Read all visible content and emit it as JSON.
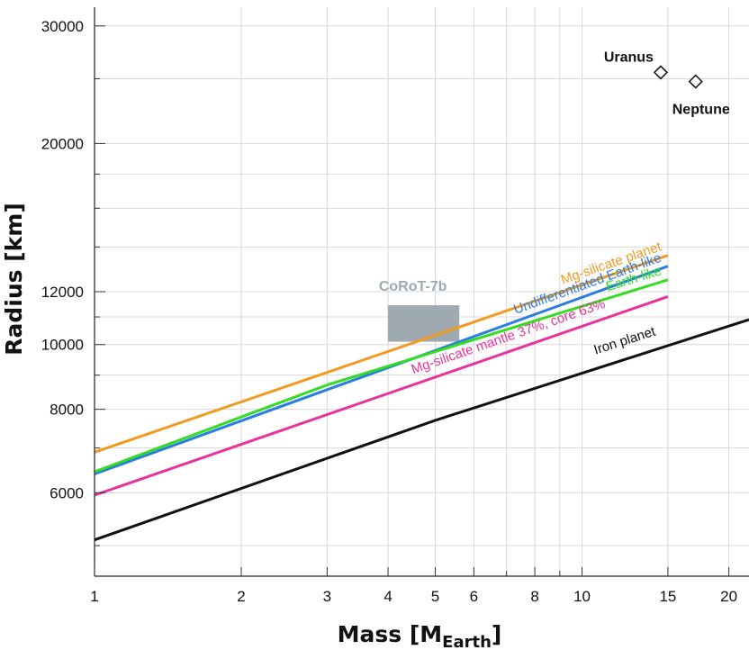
{
  "chart_data": {
    "type": "line",
    "title": "",
    "xlabel": "Mass [M",
    "xlabel_subscript": "Earth",
    "xlabel_close": "]",
    "ylabel": "Radius [km]",
    "xscale": "log",
    "yscale": "log",
    "xlim": [
      1,
      22
    ],
    "ylim": [
      4500,
      32000
    ],
    "x_major_ticks": [
      {
        "value": 1,
        "label": "1"
      },
      {
        "value": 2,
        "label": "2"
      },
      {
        "value": 3,
        "label": "3"
      },
      {
        "value": 4,
        "label": "4"
      },
      {
        "value": 5,
        "label": "5"
      },
      {
        "value": 6,
        "label": "6"
      },
      {
        "value": 8,
        "label": "8"
      },
      {
        "value": 10,
        "label": "10"
      },
      {
        "value": 15,
        "label": "15"
      },
      {
        "value": 20,
        "label": "20"
      }
    ],
    "x_minor_ticks": [
      7,
      9
    ],
    "y_major_ticks": [
      {
        "value": 6000,
        "label": "6000"
      },
      {
        "value": 8000,
        "label": "8000"
      },
      {
        "value": 10000,
        "label": "10000"
      },
      {
        "value": 12000,
        "label": "12000"
      },
      {
        "value": 20000,
        "label": "20000"
      },
      {
        "value": 30000,
        "label": "30000"
      }
    ],
    "y_minor_ticks": [
      5000,
      7000,
      9000,
      11000,
      14000,
      16000,
      18000,
      25000
    ],
    "series": [
      {
        "name": "Mg-silicate planet",
        "label": "Mg-silicate planet",
        "color": "#f29b22",
        "x": [
          1,
          15
        ],
        "y": [
          6900,
          13600
        ]
      },
      {
        "name": "Undifferentiated Earth-like",
        "label": "Undifferentiated Earth-like",
        "color": "#2a7de1",
        "x": [
          1,
          15
        ],
        "y": [
          6400,
          13100
        ]
      },
      {
        "name": "Earth-like",
        "label": "Earth-like",
        "color": "#33dd22",
        "x": [
          1,
          3,
          15
        ],
        "y": [
          6450,
          8700,
          12500
        ]
      },
      {
        "name": "Mg-silicate mantle 37%, core 63%",
        "label": "Mg-silicate mantle 37%, core 63%",
        "color": "#e8339c",
        "x": [
          1,
          15
        ],
        "y": [
          5950,
          11800
        ]
      },
      {
        "name": "Iron planet",
        "label": "Iron planet",
        "color": "#111111",
        "x": [
          1,
          5,
          22
        ],
        "y": [
          5100,
          7700,
          10900
        ]
      }
    ],
    "planets": [
      {
        "name": "Uranus",
        "mass": 14.5,
        "radius": 25559
      },
      {
        "name": "Neptune",
        "mass": 17.1,
        "radius": 24764
      }
    ],
    "regions": [
      {
        "name": "CoRoT-7b",
        "label": "CoRoT-7b",
        "color": "#9ea9b1",
        "x": [
          4.0,
          5.6
        ],
        "y": [
          10100,
          11450
        ]
      }
    ]
  }
}
